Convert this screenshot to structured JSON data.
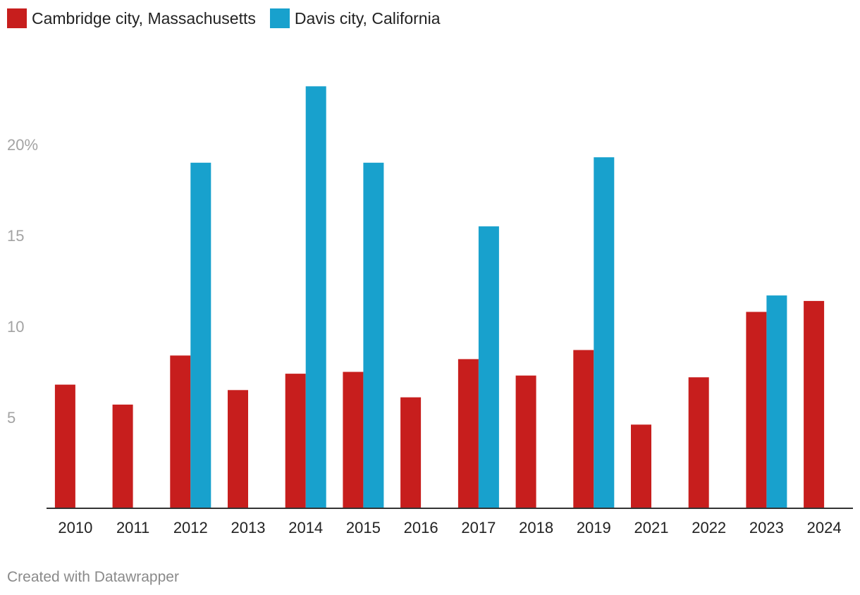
{
  "chart_data": {
    "type": "bar",
    "title": "",
    "xlabel": "",
    "ylabel": "",
    "categories": [
      "2010",
      "2011",
      "2012",
      "2013",
      "2014",
      "2015",
      "2016",
      "2017",
      "2018",
      "2019",
      "2021",
      "2022",
      "2023",
      "2024"
    ],
    "series": [
      {
        "name": "Cambridge city, Massachusetts",
        "color": "#c71e1d",
        "values": [
          6.8,
          5.7,
          8.4,
          6.5,
          7.4,
          7.5,
          6.1,
          8.2,
          7.3,
          8.7,
          4.6,
          7.2,
          10.8,
          11.4
        ]
      },
      {
        "name": "Davis city, California",
        "color": "#18a1cd",
        "values": [
          null,
          null,
          19.0,
          null,
          23.2,
          19.0,
          null,
          15.5,
          null,
          19.3,
          null,
          null,
          11.7,
          null
        ]
      }
    ],
    "yticks": [
      {
        "value": 5,
        "label": "5"
      },
      {
        "value": 10,
        "label": "10"
      },
      {
        "value": 15,
        "label": "15"
      },
      {
        "value": 20,
        "label": "20%"
      }
    ],
    "ylim": [
      0,
      25
    ],
    "grid": false,
    "legend": "top-left"
  },
  "footer": {
    "credit": "Created with Datawrapper"
  }
}
